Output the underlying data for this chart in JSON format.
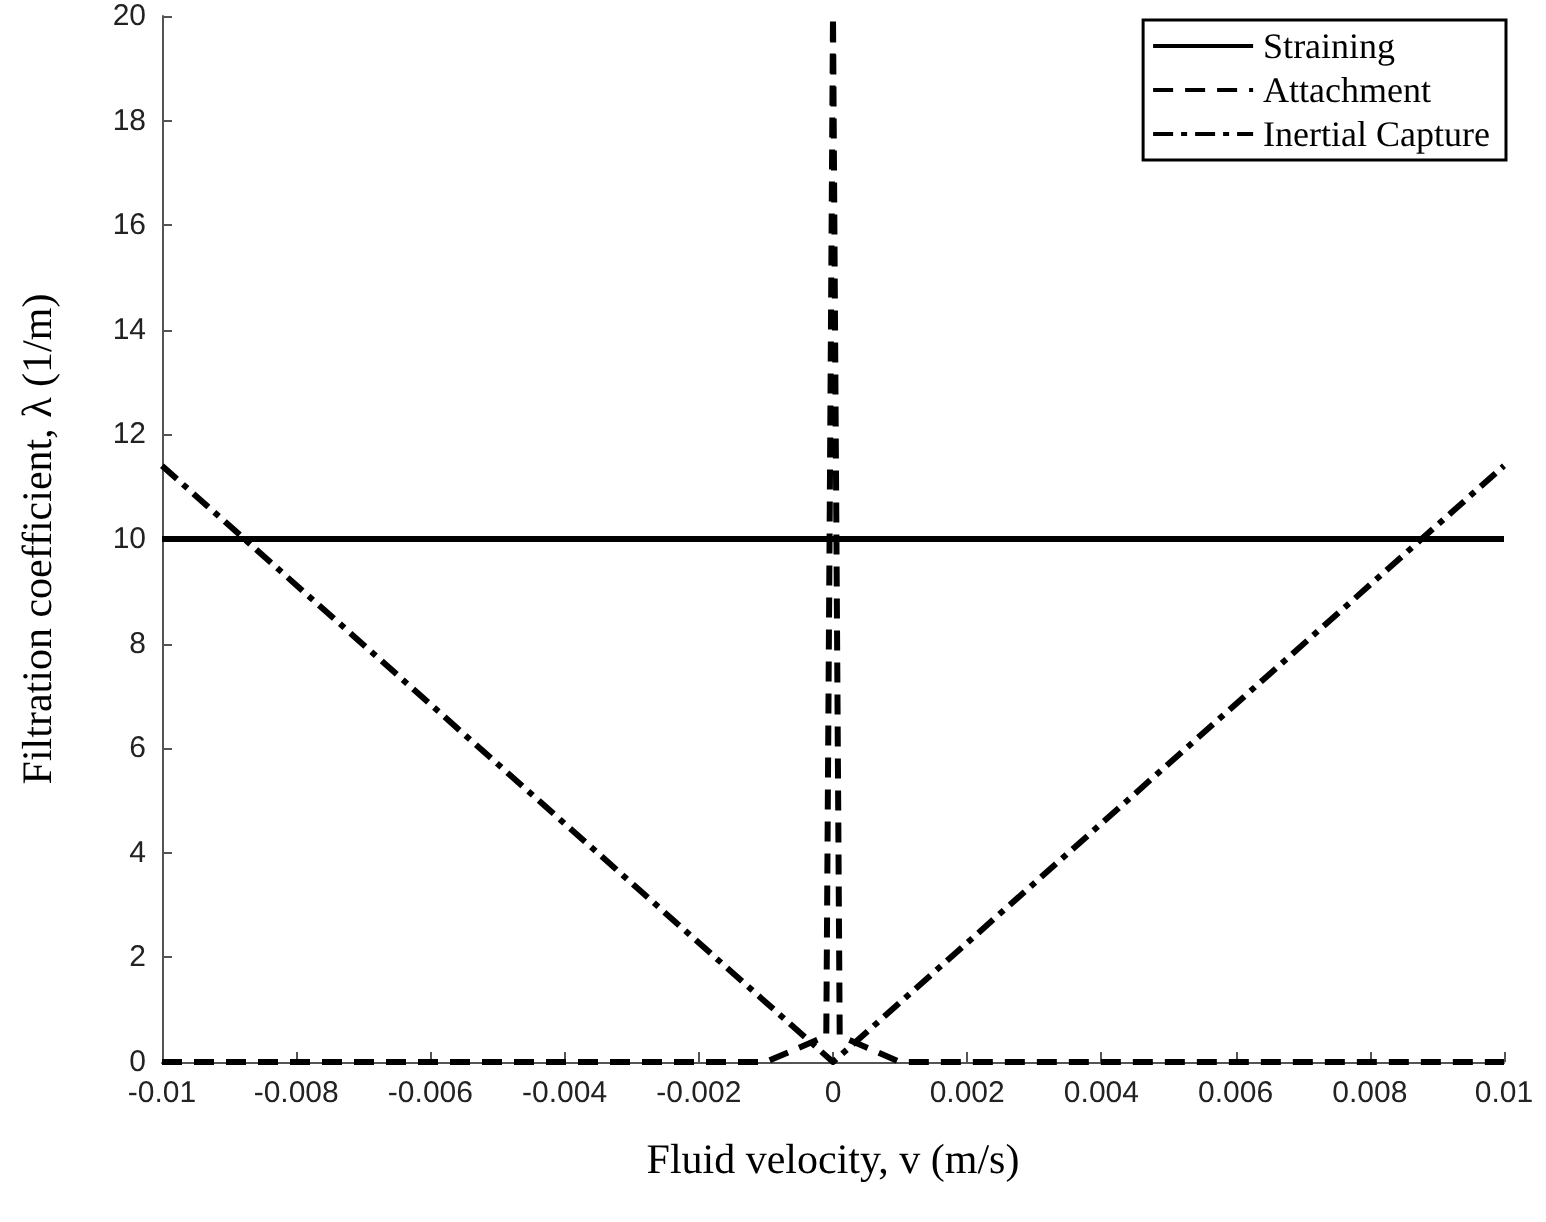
{
  "chart_data": {
    "type": "line",
    "xlabel": "Fluid velocity, v (m/s)",
    "ylabel": "Filtration coefficient, λ (1/m)",
    "xlim": [
      -0.01,
      0.01
    ],
    "xticks": [
      -0.01,
      -0.008,
      -0.006,
      -0.004,
      -0.002,
      0,
      0.002,
      0.004,
      0.006,
      0.008,
      0.01
    ],
    "ylim": [
      0,
      20
    ],
    "yticks": [
      0,
      2,
      4,
      6,
      8,
      10,
      12,
      14,
      16,
      18,
      20
    ],
    "grid": false,
    "legend": "top right",
    "marker": "none",
    "series": [
      {
        "name": "Straining",
        "color": "#000000",
        "line_style": "solid",
        "x": [
          -0.01,
          0.01
        ],
        "values": [
          10,
          10
        ]
      },
      {
        "name": "Attachment",
        "color": "#000000",
        "line_style": "dashed",
        "x": [
          -0.01,
          -0.001,
          -0.0001,
          0,
          0.0001,
          0.001,
          0.01
        ],
        "values": [
          0,
          0,
          0.5,
          20,
          0.5,
          0,
          0
        ]
      },
      {
        "name": "Inertial Capture",
        "color": "#000000",
        "line_style": "dashdot",
        "x": [
          -0.01,
          0,
          0.01
        ],
        "values": [
          11.4,
          0,
          11.4
        ]
      }
    ]
  }
}
